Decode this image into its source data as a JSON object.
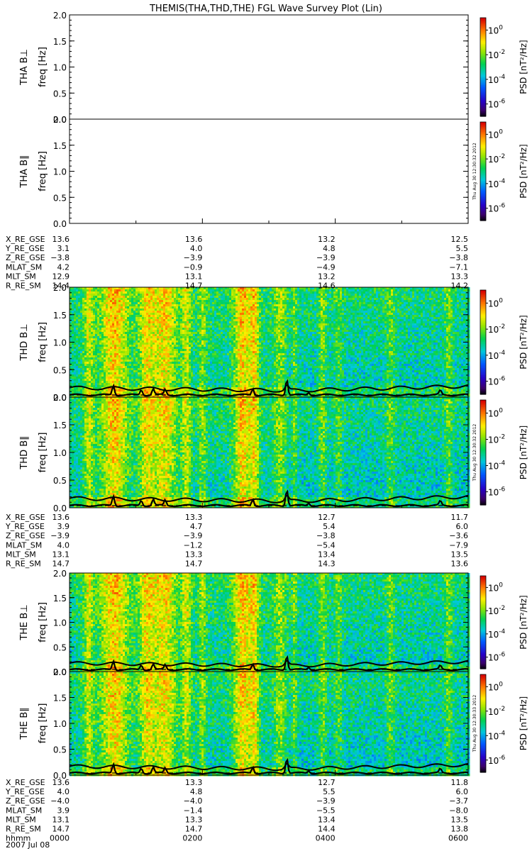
{
  "title": "THEMIS(THA,THD,THE) FGL Wave Survey Plot (Lin)",
  "colorbar_label": "PSD [nT²/Hz]",
  "colorbar_ticks": [
    {
      "base": "10",
      "exp": "0",
      "value": 1
    },
    {
      "base": "10",
      "exp": "-2",
      "value": 0.01
    },
    {
      "base": "10",
      "exp": "-4",
      "value": 0.0001
    },
    {
      "base": "10",
      "exp": "-6",
      "value": 1e-06
    }
  ],
  "timestamp": "Thu Aug 30 12:30:32 2012",
  "timestamp2": "Thu Aug 30 12:30:33 2012",
  "chart_data": [
    {
      "type": "heatmap",
      "panel": "THA B⊥",
      "ylabel": "THA B⊥",
      "yunit": "freq [Hz]",
      "ylim": [
        0,
        2
      ],
      "yticks": [
        "0.0",
        "0.5",
        "1.0",
        "1.5",
        "2.0"
      ],
      "xlim": [
        0,
        6
      ],
      "status": "no data"
    },
    {
      "type": "heatmap",
      "panel": "THA B∥",
      "ylabel": "THA B∥",
      "yunit": "freq [Hz]",
      "ylim": [
        0,
        2
      ],
      "yticks": [
        "0.0",
        "0.5",
        "1.0",
        "1.5",
        "2.0"
      ],
      "xlim": [
        0,
        6
      ],
      "status": "no data"
    },
    {
      "type": "heatmap",
      "panel": "THD B⊥",
      "ylabel": "THD B⊥",
      "yunit": "freq [Hz]",
      "ylim": [
        0,
        2
      ],
      "yticks": [
        "0.0",
        "0.5",
        "1.0",
        "1.5",
        "2.0"
      ],
      "xlim": [
        0,
        6
      ],
      "overlay_lines": 2
    },
    {
      "type": "heatmap",
      "panel": "THD B∥",
      "ylabel": "THD B∥",
      "yunit": "freq [Hz]",
      "ylim": [
        0,
        2
      ],
      "yticks": [
        "0.0",
        "0.5",
        "1.0",
        "1.5",
        "2.0"
      ],
      "xlim": [
        0,
        6
      ],
      "overlay_lines": 2
    },
    {
      "type": "heatmap",
      "panel": "THE B⊥",
      "ylabel": "THE B⊥",
      "yunit": "freq [Hz]",
      "ylim": [
        0,
        2
      ],
      "yticks": [
        "0.0",
        "0.5",
        "1.0",
        "1.5",
        "2.0"
      ],
      "xlim": [
        0,
        6
      ],
      "overlay_lines": 2
    },
    {
      "type": "heatmap",
      "panel": "THE B∥",
      "ylabel": "THE B∥",
      "yunit": "freq [Hz]",
      "ylim": [
        0,
        2
      ],
      "yticks": [
        "0.0",
        "0.5",
        "1.0",
        "1.5",
        "2.0"
      ],
      "xlim": [
        0,
        6
      ],
      "overlay_lines": 2
    }
  ],
  "ephemeris": [
    {
      "probe": "THA",
      "rows": [
        {
          "label": "X_RE_GSE",
          "values": [
            "13.6",
            "13.6",
            "13.2",
            "12.5"
          ]
        },
        {
          "label": "Y_RE_GSE",
          "values": [
            "3.1",
            "4.0",
            "4.8",
            "5.5"
          ]
        },
        {
          "label": "Z_RE_GSE",
          "values": [
            "−3.8",
            "−3.9",
            "−3.9",
            "−3.8"
          ]
        },
        {
          "label": "MLAT_SM",
          "values": [
            "4.2",
            "−0.9",
            "−4.9",
            "−7.1"
          ]
        },
        {
          "label": "MLT_SM",
          "values": [
            "12.9",
            "13.1",
            "13.2",
            "13.3"
          ]
        },
        {
          "label": "R_RE_SM",
          "values": [
            "14.4",
            "14.7",
            "14.6",
            "14.2"
          ]
        }
      ]
    },
    {
      "probe": "THD",
      "rows": [
        {
          "label": "X_RE_GSE",
          "values": [
            "13.6",
            "13.3",
            "12.7",
            "11.7"
          ]
        },
        {
          "label": "Y_RE_GSE",
          "values": [
            "3.9",
            "4.7",
            "5.4",
            "6.0"
          ]
        },
        {
          "label": "Z_RE_GSE",
          "values": [
            "−3.9",
            "−3.9",
            "−3.8",
            "−3.6"
          ]
        },
        {
          "label": "MLAT_SM",
          "values": [
            "4.0",
            "−1.2",
            "−5.4",
            "−7.9"
          ]
        },
        {
          "label": "MLT_SM",
          "values": [
            "13.1",
            "13.3",
            "13.4",
            "13.5"
          ]
        },
        {
          "label": "R_RE_SM",
          "values": [
            "14.7",
            "14.7",
            "14.3",
            "13.6"
          ]
        }
      ]
    },
    {
      "probe": "THE",
      "rows": [
        {
          "label": "X_RE_GSE",
          "values": [
            "13.6",
            "13.3",
            "12.7",
            "11.8"
          ]
        },
        {
          "label": "Y_RE_GSE",
          "values": [
            "4.0",
            "4.8",
            "5.5",
            "6.0"
          ]
        },
        {
          "label": "Z_RE_GSE",
          "values": [
            "−4.0",
            "−4.0",
            "−3.9",
            "−3.7"
          ]
        },
        {
          "label": "MLAT_SM",
          "values": [
            "3.9",
            "−1.4",
            "−5.5",
            "−8.0"
          ]
        },
        {
          "label": "MLT_SM",
          "values": [
            "13.1",
            "13.3",
            "13.4",
            "13.5"
          ]
        },
        {
          "label": "R_RE_SM",
          "values": [
            "14.7",
            "14.7",
            "14.4",
            "13.8"
          ]
        },
        {
          "label": "hhmm",
          "values": [
            "0000",
            "0200",
            "0400",
            "0600"
          ]
        }
      ]
    }
  ],
  "date_label": "2007 Jul 08"
}
